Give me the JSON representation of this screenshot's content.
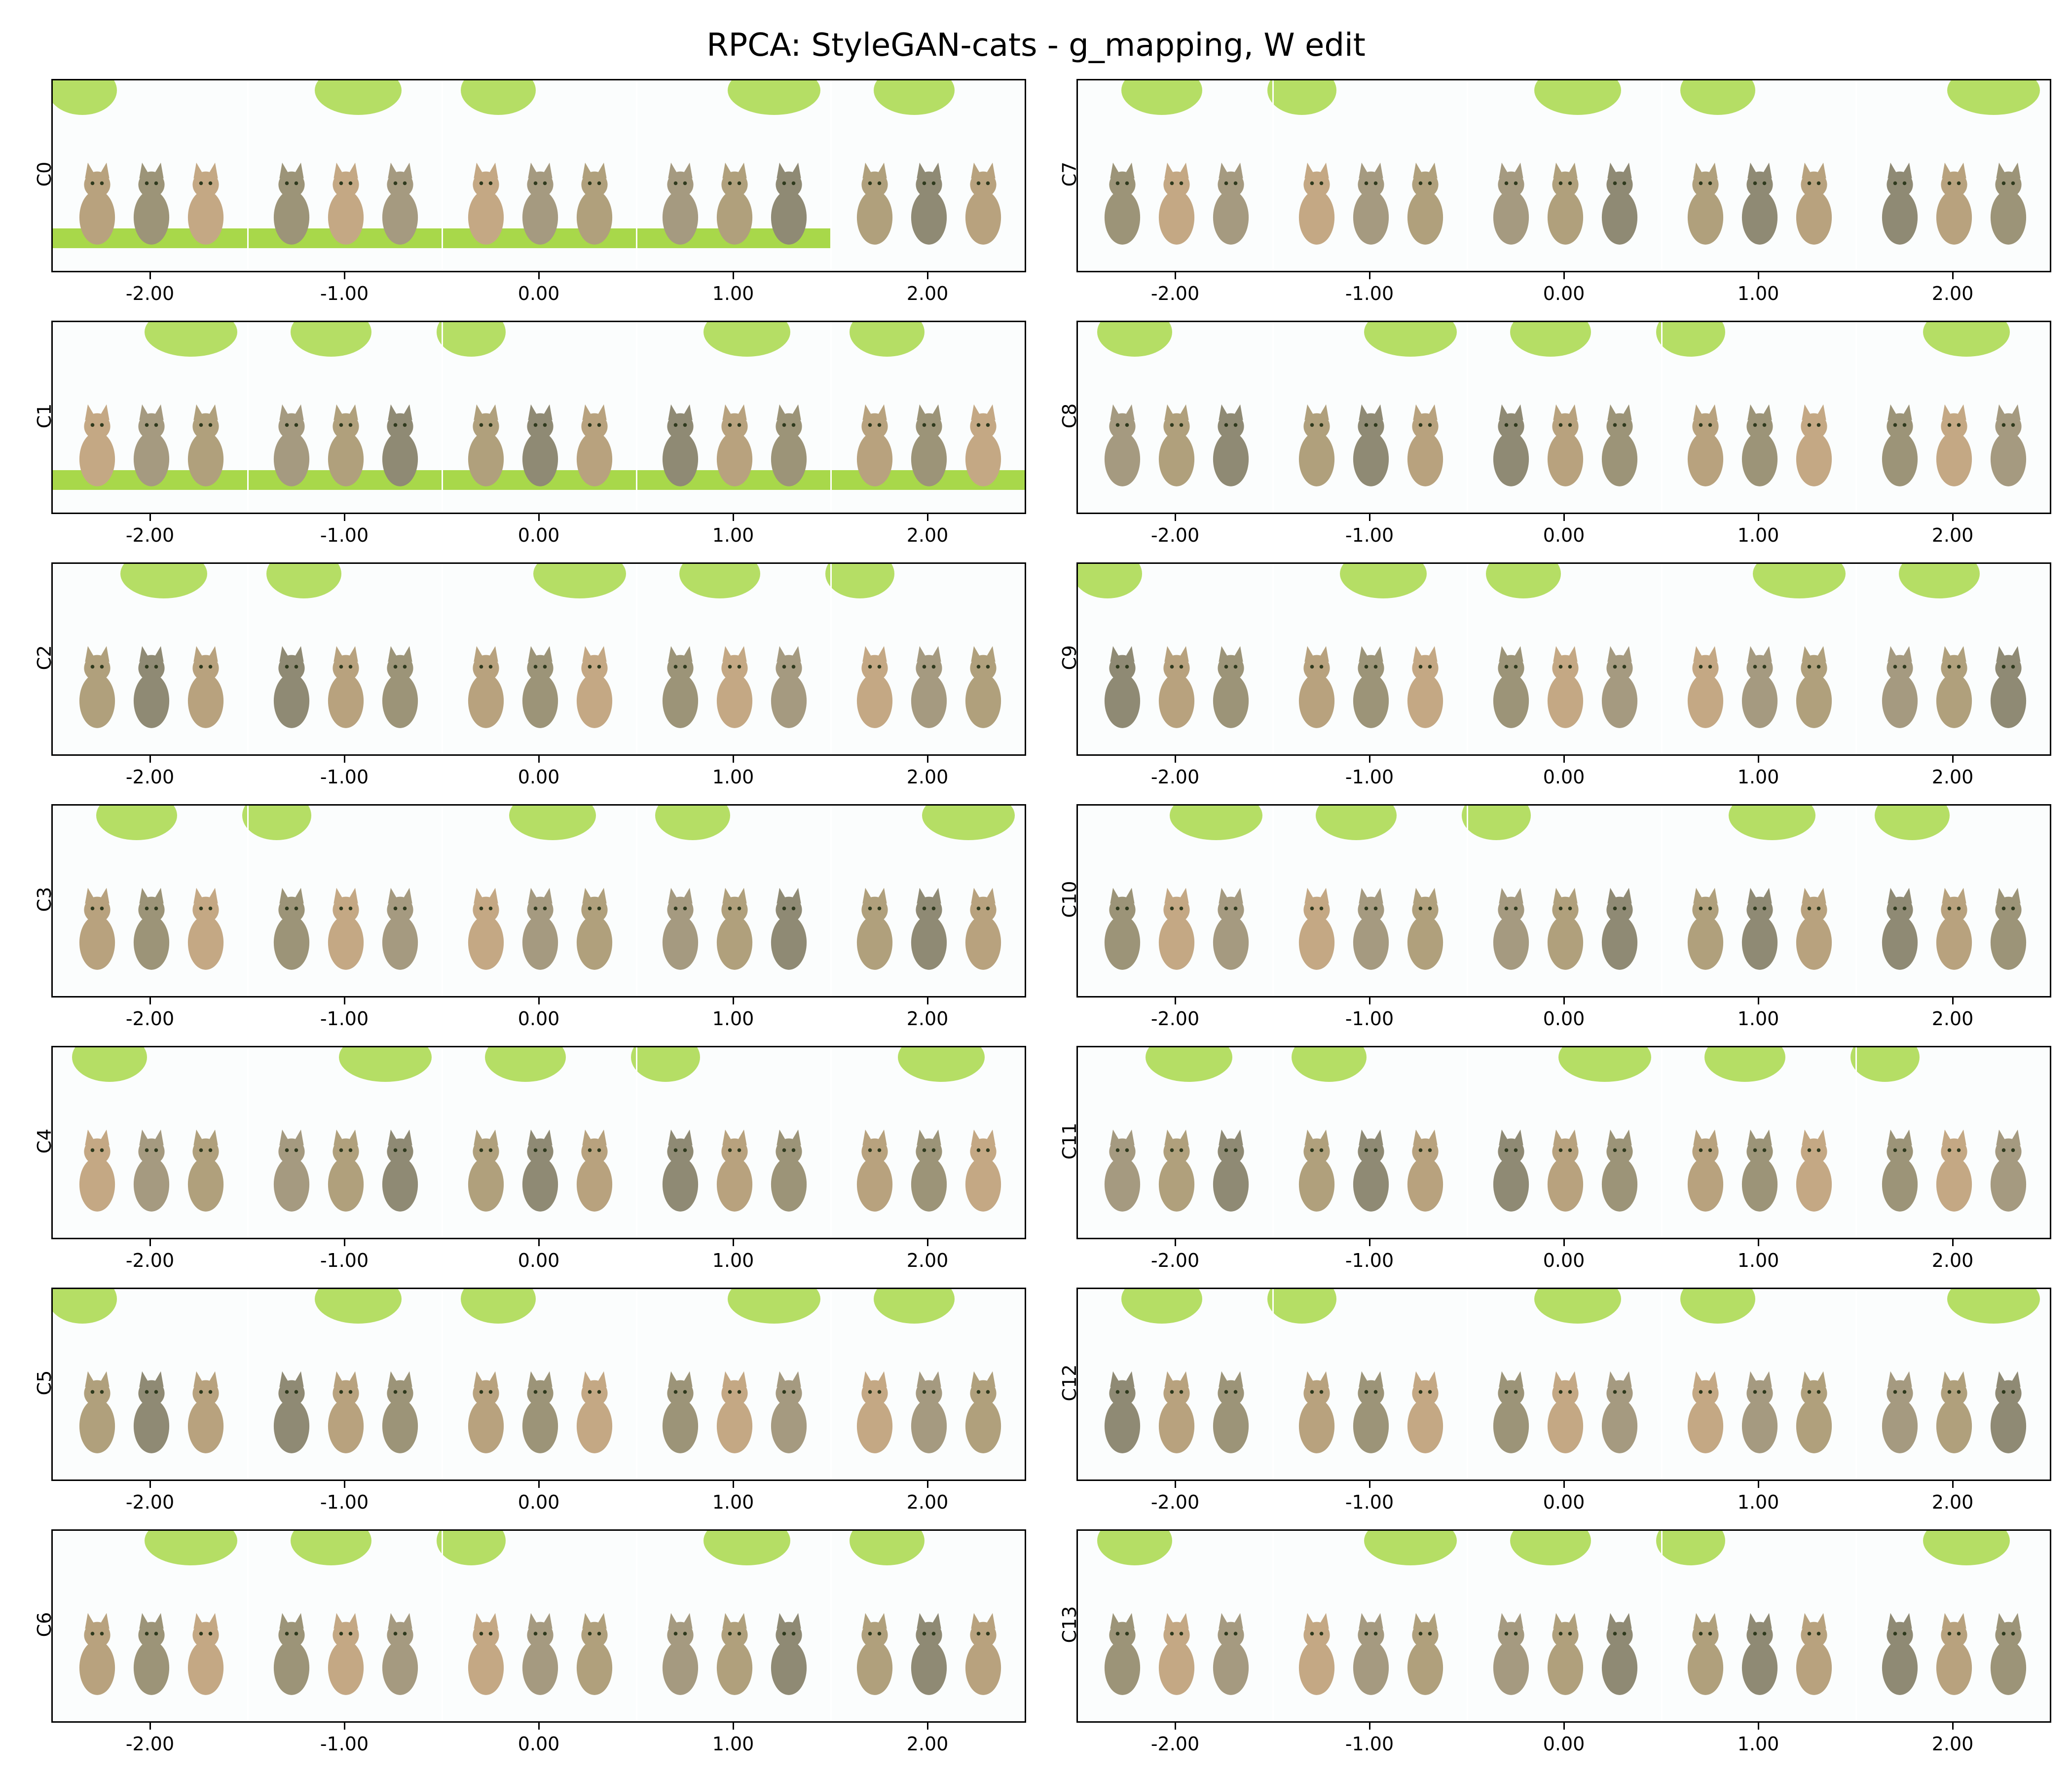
{
  "title": "RPCA: StyleGAN-cats - g_mapping, W edit",
  "x_ticks": [
    "-2.00",
    "-1.00",
    "0.00",
    "1.00",
    "2.00"
  ],
  "panels": [
    {
      "label": "C0"
    },
    {
      "label": "C7"
    },
    {
      "label": "C1"
    },
    {
      "label": "C8"
    },
    {
      "label": "C2"
    },
    {
      "label": "C9"
    },
    {
      "label": "C3"
    },
    {
      "label": "C10"
    },
    {
      "label": "C4"
    },
    {
      "label": "C11"
    },
    {
      "label": "C5"
    },
    {
      "label": "C12"
    },
    {
      "label": "C6"
    },
    {
      "label": "C13"
    }
  ],
  "colors": {
    "grass": "#a8d84a",
    "background": "#ffffff",
    "cat": "#a89a7c"
  }
}
